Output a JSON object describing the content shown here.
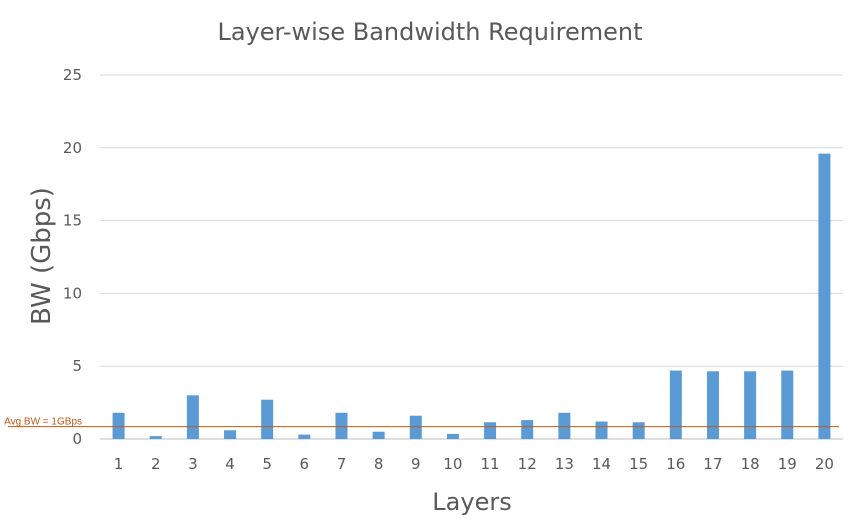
{
  "chart_data": {
    "type": "bar",
    "title": "Layer-wise Bandwidth Requirement",
    "xlabel": "Layers",
    "ylabel": "BW (Gbps)",
    "categories": [
      "1",
      "2",
      "3",
      "4",
      "5",
      "6",
      "7",
      "8",
      "9",
      "10",
      "11",
      "12",
      "13",
      "14",
      "15",
      "16",
      "17",
      "18",
      "19",
      "20"
    ],
    "series": [
      {
        "values": [
          1.8,
          0.2,
          3.0,
          0.6,
          2.7,
          0.3,
          1.8,
          0.5,
          1.6,
          0.35,
          1.15,
          1.3,
          1.8,
          1.2,
          1.15,
          4.7,
          4.65,
          4.65,
          4.7,
          19.6
        ],
        "color": "#5b9bd5"
      }
    ],
    "ylim": [
      0,
      25
    ],
    "yticks": [
      0,
      5,
      10,
      15,
      20,
      25
    ],
    "grid": true,
    "reference_line": {
      "label": "Avg BW = 1GBps",
      "value": 0.85,
      "color": "#c55a11"
    }
  }
}
